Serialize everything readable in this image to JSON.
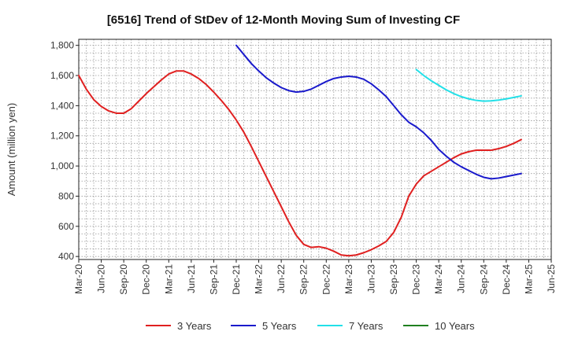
{
  "chart_data": {
    "type": "line",
    "title": "[6516]  Trend of StDev of 12-Month Moving Sum of Investing CF",
    "xlabel": "",
    "ylabel": "Amount (million yen)",
    "ylim": [
      380,
      1840
    ],
    "y_ticks": [
      400,
      600,
      800,
      1000,
      1200,
      1400,
      1600,
      1800
    ],
    "y_tick_labels": [
      "400",
      "600",
      "800",
      "1,000",
      "1,200",
      "1,400",
      "1,600",
      "1,800"
    ],
    "x_tick_labels": [
      "Mar-20",
      "Jun-20",
      "Sep-20",
      "Dec-20",
      "Mar-21",
      "Jun-21",
      "Sep-21",
      "Dec-21",
      "Mar-22",
      "Jun-22",
      "Sep-22",
      "Dec-22",
      "Mar-23",
      "Jun-23",
      "Sep-23",
      "Dec-23",
      "Mar-24",
      "Jun-24",
      "Sep-24",
      "Dec-24",
      "Mar-25",
      "Jun-25"
    ],
    "grid": true,
    "legend_position": "bottom",
    "series": [
      {
        "name": "3 Years",
        "color": "#e02020",
        "start": "Mar-20",
        "values": [
          1600,
          1510,
          1440,
          1395,
          1365,
          1350,
          1350,
          1380,
          1430,
          1480,
          1525,
          1570,
          1610,
          1630,
          1630,
          1610,
          1580,
          1540,
          1490,
          1435,
          1375,
          1305,
          1225,
          1130,
          1030,
          930,
          830,
          730,
          630,
          540,
          480,
          460,
          465,
          455,
          435,
          410,
          405,
          410,
          425,
          445,
          470,
          500,
          560,
          660,
          800,
          880,
          935,
          965,
          995,
          1025,
          1055,
          1080,
          1095,
          1105,
          1105,
          1105,
          1115,
          1130,
          1150,
          1175
        ]
      },
      {
        "name": "5 Years",
        "color": "#1a1acc",
        "start": "Dec-21",
        "values": [
          1800,
          1740,
          1680,
          1630,
          1585,
          1550,
          1520,
          1500,
          1490,
          1495,
          1510,
          1535,
          1560,
          1580,
          1590,
          1595,
          1590,
          1575,
          1545,
          1505,
          1460,
          1400,
          1340,
          1290,
          1260,
          1220,
          1170,
          1110,
          1065,
          1025,
          995,
          970,
          945,
          925,
          915,
          920,
          930,
          940,
          950
        ]
      },
      {
        "name": "7 Years",
        "color": "#22e0e8",
        "start": "Dec-23",
        "values": [
          1640,
          1600,
          1565,
          1535,
          1505,
          1480,
          1460,
          1445,
          1435,
          1430,
          1432,
          1437,
          1445,
          1455,
          1465
        ]
      },
      {
        "name": "10 Years",
        "color": "#208020",
        "start": "Mar-20",
        "values": []
      }
    ]
  }
}
